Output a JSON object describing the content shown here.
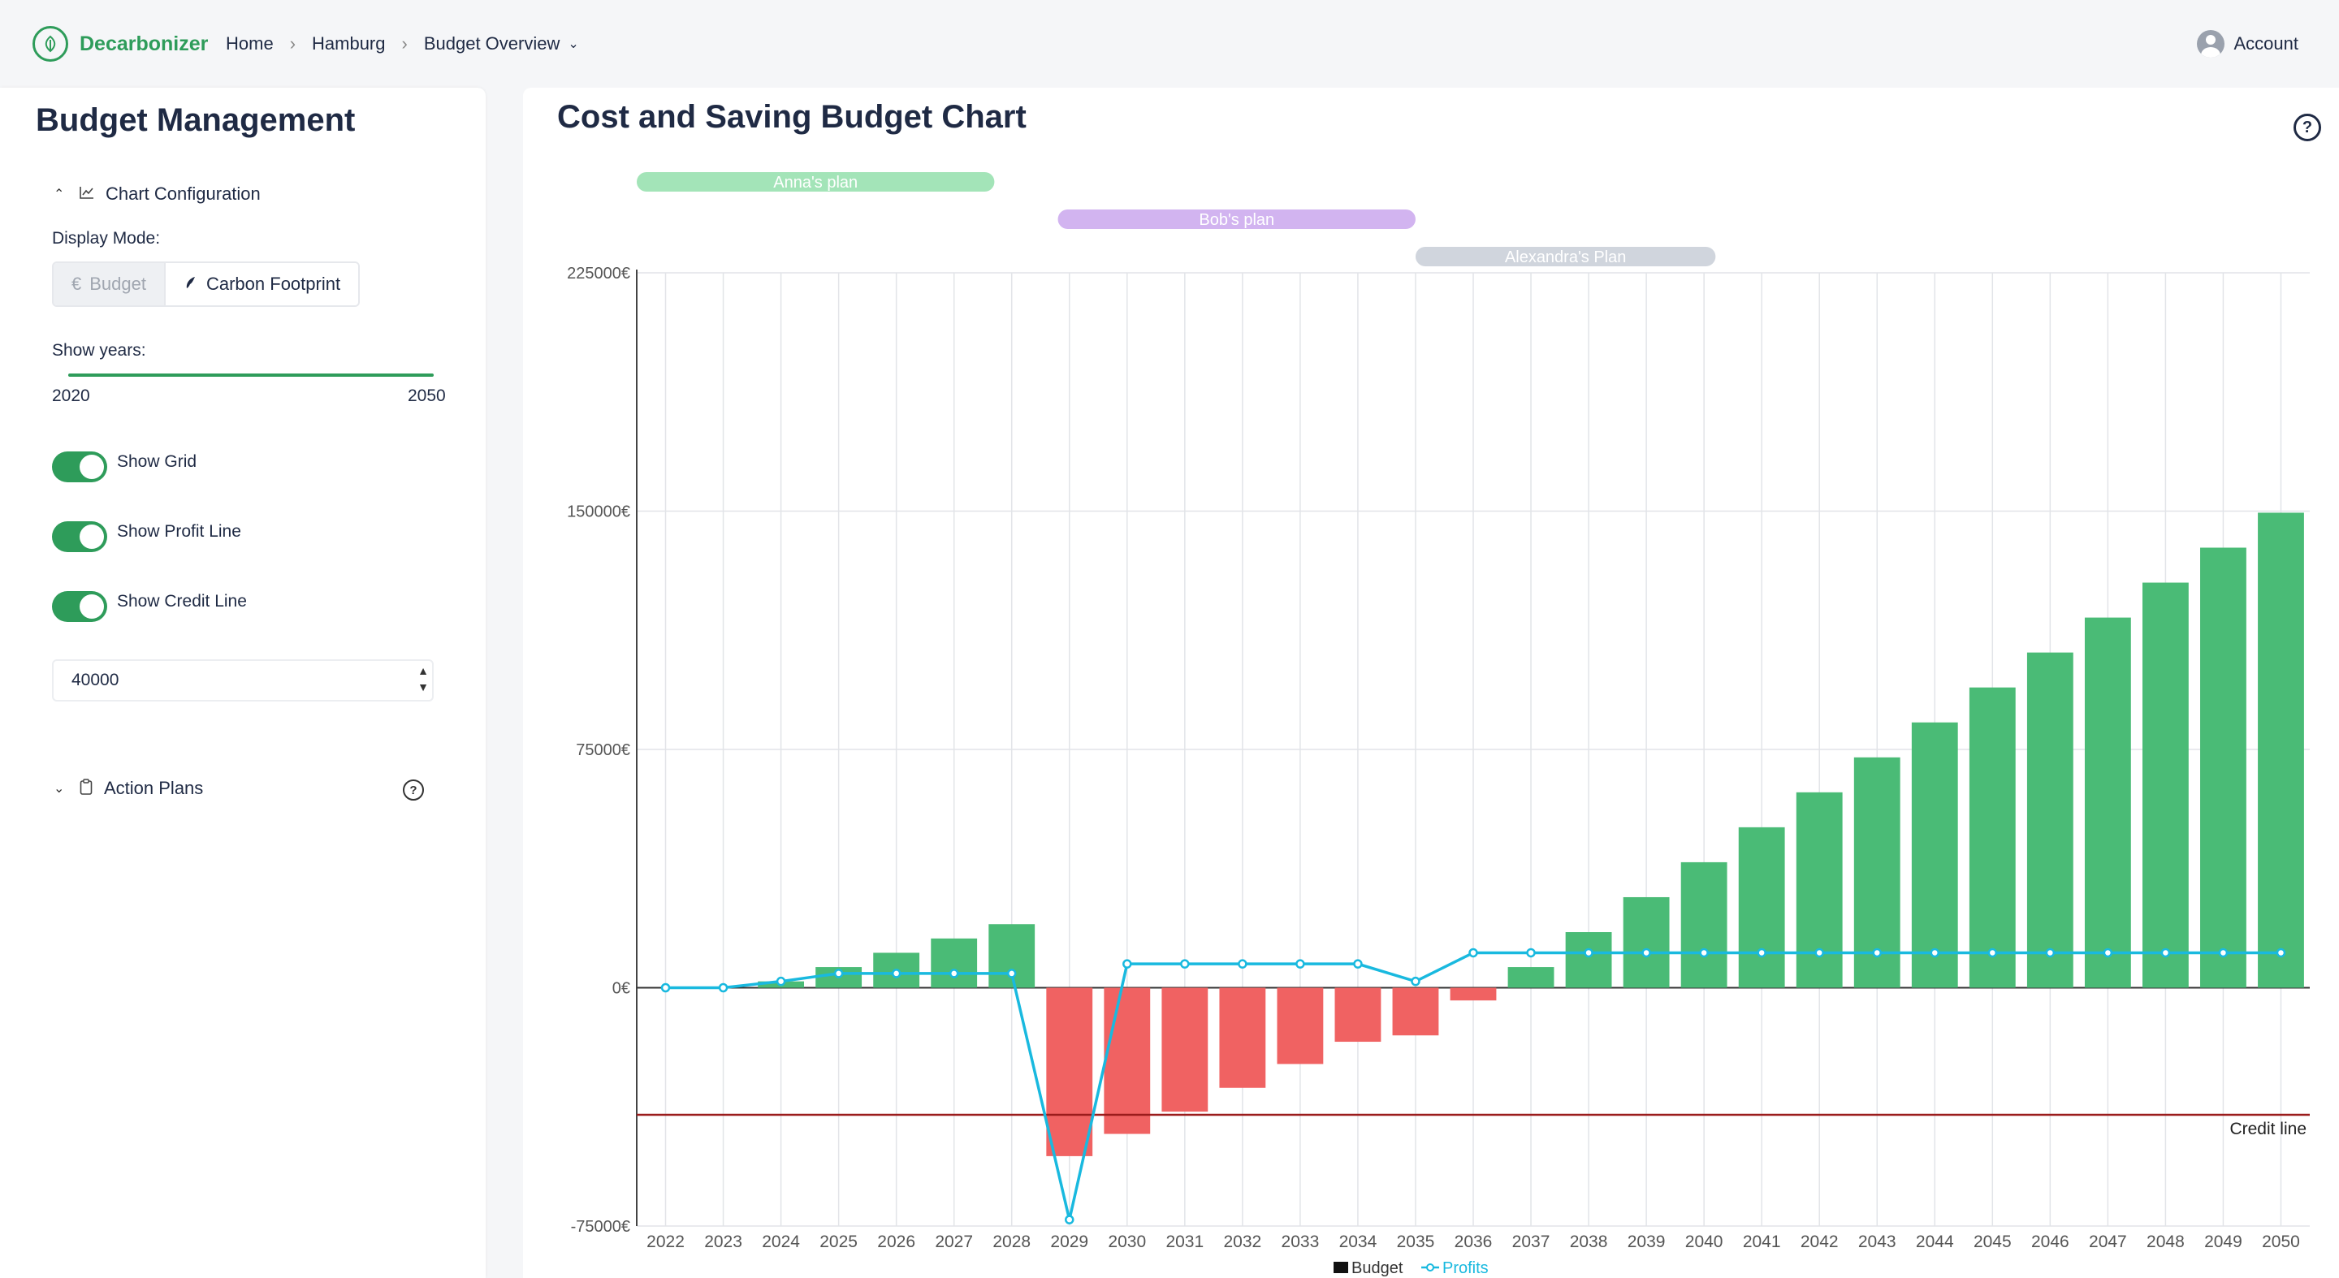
{
  "topbar": {
    "brand": "Decarbonizer",
    "breadcrumbs": [
      "Home",
      "Hamburg",
      "Budget Overview"
    ],
    "account": "Account"
  },
  "sidebar": {
    "title": "Budget Management",
    "chart_config": "Chart Configuration",
    "display_mode_label": "Display Mode:",
    "mode_budget": "Budget",
    "mode_carbon": "Carbon Footprint",
    "show_years_label": "Show years:",
    "year_min": "2020",
    "year_max": "2050",
    "toggles": [
      "Show Grid",
      "Show Profit Line",
      "Show Credit Line"
    ],
    "credit_value": "40000",
    "action_plans": "Action Plans"
  },
  "main": {
    "title": "Cost and Saving Budget Chart"
  },
  "chart_data": {
    "type": "bar",
    "categories": [
      2022,
      2023,
      2024,
      2025,
      2026,
      2027,
      2028,
      2029,
      2030,
      2031,
      2032,
      2033,
      2034,
      2035,
      2036,
      2037,
      2038,
      2039,
      2040,
      2041,
      2042,
      2043,
      2044,
      2045,
      2046,
      2047,
      2048,
      2049,
      2050
    ],
    "series": [
      {
        "name": "Budget",
        "type": "bar",
        "values": [
          0,
          0,
          2000,
          6500,
          11000,
          15500,
          20000,
          -53000,
          -46000,
          -39000,
          -31500,
          -24000,
          -17000,
          -15000,
          -4000,
          6500,
          17500,
          28500,
          39500,
          50500,
          61500,
          72500,
          83500,
          94500,
          105500,
          116500,
          127500,
          138500,
          149500
        ]
      },
      {
        "name": "Profits",
        "type": "line",
        "values": [
          0,
          0,
          2000,
          4500,
          4500,
          4500,
          4500,
          -73000,
          7500,
          7500,
          7500,
          7500,
          7500,
          2000,
          11000,
          11000,
          11000,
          11000,
          11000,
          11000,
          11000,
          11000,
          11000,
          11000,
          11000,
          11000,
          11000,
          11000,
          11000
        ]
      }
    ],
    "ylim": [
      -75000,
      225000
    ],
    "yticks": [
      -75000,
      0,
      75000,
      150000,
      225000
    ],
    "ytick_labels": [
      "-75000€",
      "0€",
      "75000€",
      "150000€",
      "225000€"
    ],
    "credit_line": {
      "value": -40000,
      "label": "Credit line"
    },
    "plans": [
      {
        "name": "Anna's plan",
        "start": 2021.5,
        "end": 2027.7,
        "color": "#a3e4b8"
      },
      {
        "name": "Bob's plan",
        "start": 2028.8,
        "end": 2035,
        "color": "#d2b4f0"
      },
      {
        "name": "Alexandra's Plan",
        "start": 2035,
        "end": 2040.2,
        "color": "#d0d5dd"
      }
    ],
    "grid": true,
    "colors": {
      "positive": "#4abb76",
      "negative": "#f06262",
      "profit": "#19b9df",
      "credit": "#9b1c1c"
    },
    "legend": [
      "Budget",
      "Profits"
    ]
  }
}
